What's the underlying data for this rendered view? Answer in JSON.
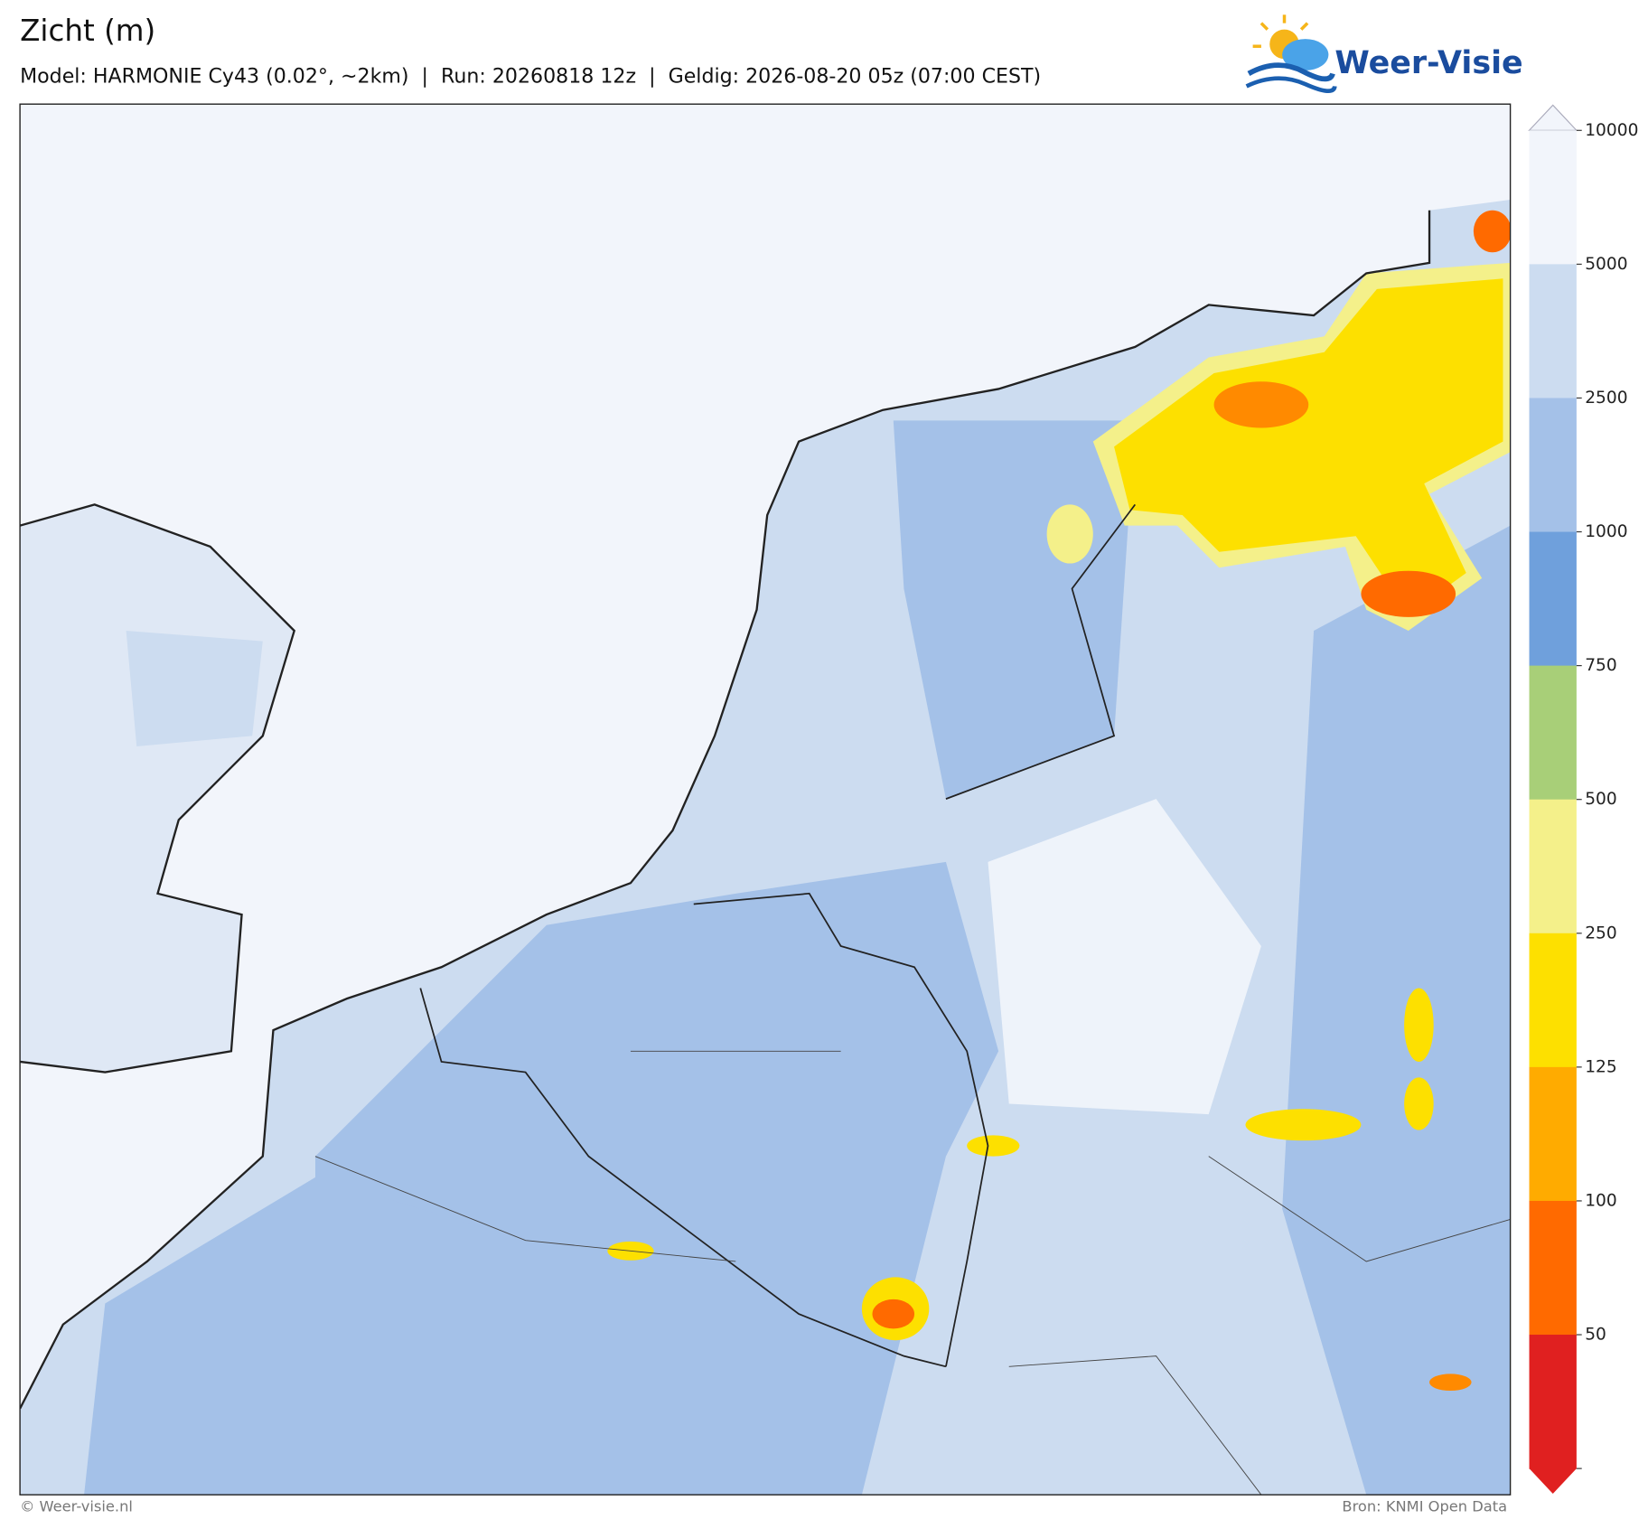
{
  "header": {
    "title": "Zicht (m)",
    "subtitle": "Model: HARMONIE Cy43 (0.02°, ~2km)  |  Run: 20260818 12z  |  Geldig: 2026-08-20 05z (07:00 CEST)",
    "logo": "Weer-Visie"
  },
  "colorbar": {
    "ticks": [
      10000,
      5000,
      2500,
      1000,
      750,
      500,
      250,
      125,
      100,
      50
    ],
    "colors": [
      "#f2f5fb",
      "#ccdcf0",
      "#a4c1e8",
      "#6fa0dc",
      "#a8cf78",
      "#f4f08a",
      "#fde000",
      "#ffab00",
      "#ff6a00",
      "#e02020"
    ]
  },
  "footer": {
    "left": "© Weer-visie.nl",
    "right": "Bron: KNMI Open Data"
  }
}
